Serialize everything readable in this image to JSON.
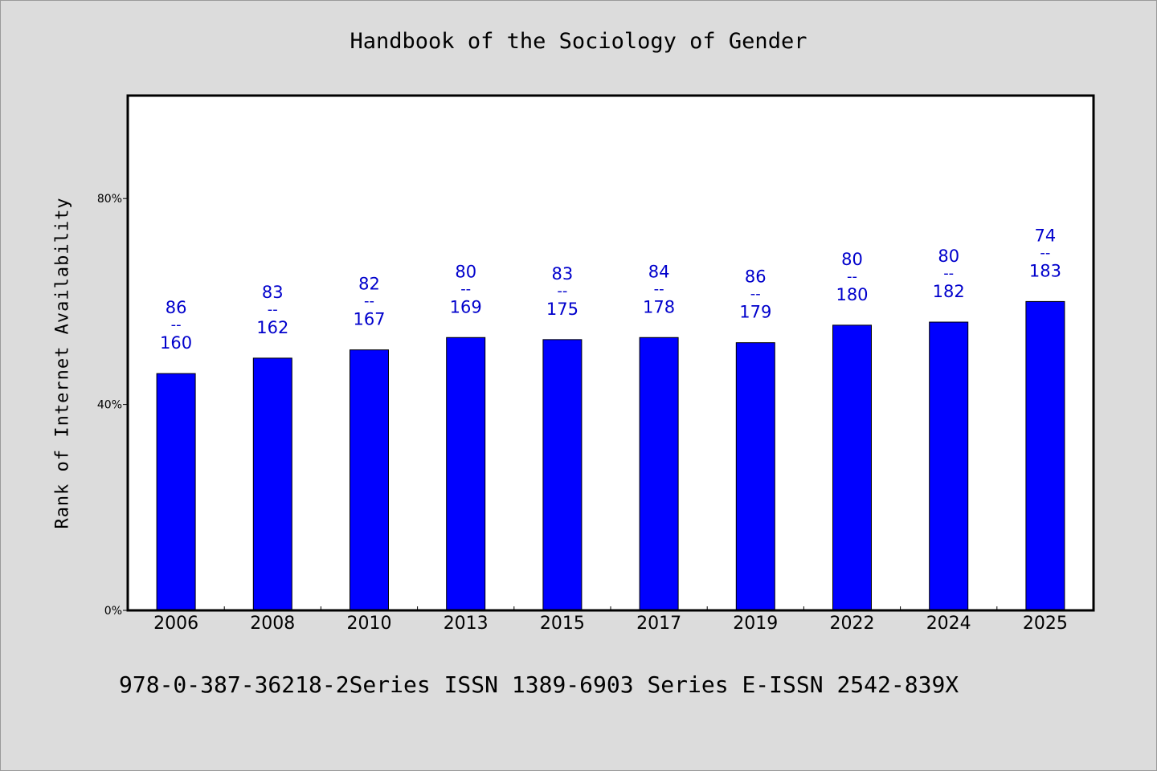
{
  "page": {
    "title": "Handbook of the Sociology of Gender",
    "footer": "978-0-387-36218-2Series ISSN 1389-6903 Series E-ISSN 2542-839X"
  },
  "colors": {
    "background": "#dcdcdc",
    "plot_background": "#ffffff",
    "bar": "#0000ff",
    "data_label": "#0000cc",
    "axis": "#000000"
  },
  "chart_data": {
    "type": "bar",
    "title": "Handbook of the Sociology of Gender",
    "xlabel": "",
    "ylabel": "Rank of Internet Availability",
    "categories": [
      "2006",
      "2008",
      "2010",
      "2013",
      "2015",
      "2017",
      "2019",
      "2022",
      "2024",
      "2025"
    ],
    "values": [
      46,
      49,
      50.6,
      53,
      52.6,
      53,
      52,
      55.4,
      56,
      60
    ],
    "data_labels": [
      {
        "top": "86",
        "sep": "--",
        "bottom": "160"
      },
      {
        "top": "83",
        "sep": "--",
        "bottom": "162"
      },
      {
        "top": "82",
        "sep": "--",
        "bottom": "167"
      },
      {
        "top": "80",
        "sep": "--",
        "bottom": "169"
      },
      {
        "top": "83",
        "sep": "--",
        "bottom": "175"
      },
      {
        "top": "84",
        "sep": "--",
        "bottom": "178"
      },
      {
        "top": "86",
        "sep": "--",
        "bottom": "179"
      },
      {
        "top": "80",
        "sep": "--",
        "bottom": "180"
      },
      {
        "top": "80",
        "sep": "--",
        "bottom": "182"
      },
      {
        "top": "74",
        "sep": "--",
        "bottom": "183"
      }
    ],
    "yticks": [
      0,
      40,
      80
    ],
    "ytick_labels": [
      "0%",
      "40%",
      "80%"
    ],
    "ylim": [
      0,
      100
    ],
    "grid": false,
    "legend": "none"
  }
}
